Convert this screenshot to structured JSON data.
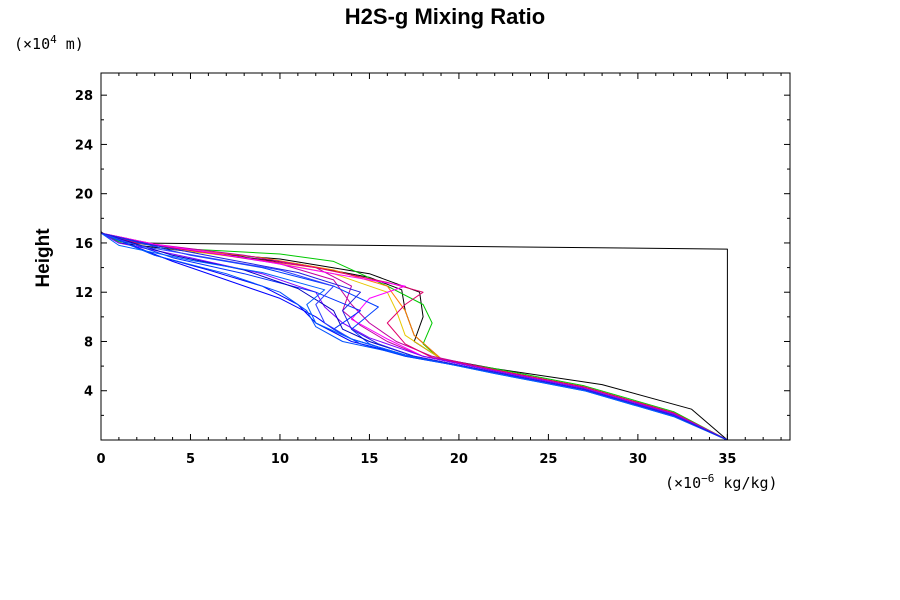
{
  "chart_data": {
    "type": "line",
    "title": "H2S-g Mixing Ratio",
    "xlabel": "",
    "ylabel": "Height",
    "x_unit_prefix": "(×10",
    "x_unit_exp": "−6",
    "x_unit_suffix": " kg/kg)",
    "y_unit_prefix": "(×10",
    "y_unit_exp": "4",
    "y_unit_suffix": " m)",
    "xlim": [
      0,
      38.5
    ],
    "ylim": [
      0,
      29.8
    ],
    "x_ticks": [
      0,
      5,
      10,
      15,
      20,
      25,
      30,
      35
    ],
    "y_ticks": [
      4,
      8,
      12,
      16,
      20,
      24,
      28
    ],
    "x_tick_labels": [
      "0",
      "5",
      "10",
      "15",
      "20",
      "25",
      "30",
      "35"
    ],
    "y_tick_labels": [
      "4",
      "8",
      "12",
      "16",
      "20",
      "24",
      "28"
    ],
    "grid": false,
    "legend": "none",
    "series": [
      {
        "color": "#000000",
        "x": [
          0,
          0.5,
          2,
          35,
          35,
          33,
          28,
          22,
          19,
          17.5,
          18,
          17.8,
          15,
          10,
          5,
          1,
          0
        ],
        "y": [
          16.9,
          16.4,
          16.0,
          15.5,
          0,
          2.5,
          4.5,
          5.8,
          6.6,
          8.0,
          10.0,
          12.0,
          13.5,
          14.7,
          15.3,
          16.0,
          16.9
        ]
      },
      {
        "color": "#000000",
        "x": [
          35,
          32,
          27,
          22,
          19,
          17.5,
          17,
          16.8,
          15,
          11,
          6,
          2,
          0
        ],
        "y": [
          0,
          2.2,
          4.3,
          5.7,
          6.6,
          8.5,
          10.5,
          12.2,
          13.2,
          14.3,
          15.2,
          16.0,
          16.8
        ]
      },
      {
        "color": "#00c800",
        "x": [
          35,
          32,
          27,
          22,
          19,
          18,
          18.5,
          18,
          16,
          14.5,
          13,
          10,
          5,
          1,
          0
        ],
        "y": [
          0,
          2.3,
          4.4,
          5.8,
          6.5,
          7.8,
          9.5,
          11.0,
          12.5,
          13.5,
          14.5,
          15.1,
          15.5,
          16.1,
          16.8
        ]
      },
      {
        "color": "#e8c800",
        "x": [
          35,
          32,
          27,
          22,
          19,
          17,
          16.5,
          16,
          13,
          9,
          4,
          0
        ],
        "y": [
          0,
          2.2,
          4.3,
          5.7,
          6.6,
          8.5,
          10.5,
          12.0,
          13.5,
          14.6,
          15.5,
          16.8
        ]
      },
      {
        "color": "#ff8000",
        "x": [
          35,
          32,
          27,
          22,
          19,
          17.5,
          17,
          16,
          13,
          9,
          4,
          0
        ],
        "y": [
          0,
          2.2,
          4.3,
          5.7,
          6.6,
          8.5,
          10.5,
          12.5,
          13.8,
          14.8,
          15.6,
          16.8
        ]
      },
      {
        "color": "#c000a0",
        "x": [
          35,
          32,
          27,
          22,
          18.5,
          16.5,
          15,
          14,
          13,
          10,
          6,
          2,
          0
        ],
        "y": [
          0,
          2.2,
          4.3,
          5.7,
          6.8,
          8.0,
          9.5,
          11.0,
          13.0,
          14.3,
          15.2,
          16.0,
          16.8
        ]
      },
      {
        "color": "#c000a0",
        "x": [
          35,
          32,
          27,
          22,
          18,
          16,
          14.5,
          13.5,
          14,
          12,
          8,
          3,
          0
        ],
        "y": [
          0,
          2.1,
          4.2,
          5.6,
          6.8,
          8.0,
          9.3,
          10.5,
          12.5,
          14.0,
          15.0,
          15.9,
          16.8
        ]
      },
      {
        "color": "#e0006a",
        "x": [
          35,
          32,
          27,
          22,
          18.5,
          17,
          16,
          17,
          18,
          16,
          12,
          7,
          2,
          0
        ],
        "y": [
          0,
          2.2,
          4.3,
          5.7,
          6.7,
          7.8,
          9.5,
          11.0,
          12.0,
          12.8,
          14.0,
          15.0,
          16.0,
          16.8
        ]
      },
      {
        "color": "#ff00ff",
        "x": [
          35,
          32,
          27,
          22,
          18,
          16,
          14,
          15,
          17,
          13,
          8,
          3,
          0
        ],
        "y": [
          0,
          2.1,
          4.2,
          5.6,
          6.8,
          8.2,
          9.8,
          11.5,
          12.5,
          13.5,
          14.8,
          15.9,
          16.8
        ]
      },
      {
        "color": "#8000ff",
        "x": [
          35,
          32,
          27,
          22,
          18,
          15,
          13.5,
          12.5,
          12,
          9,
          5,
          1,
          0
        ],
        "y": [
          0,
          2.1,
          4.2,
          5.6,
          6.8,
          8.3,
          9.5,
          10.8,
          12.0,
          13.5,
          14.8,
          16.0,
          16.8
        ]
      },
      {
        "color": "#0000ff",
        "x": [
          35,
          32,
          27,
          22,
          17,
          14,
          12,
          11,
          9,
          6,
          3,
          0
        ],
        "y": [
          0,
          2.0,
          4.1,
          5.5,
          6.9,
          8.0,
          9.5,
          11.0,
          12.5,
          13.8,
          15.0,
          16.8
        ]
      },
      {
        "color": "#0000ff",
        "x": [
          35,
          32,
          27,
          22,
          17,
          14,
          13,
          12,
          10,
          7,
          4,
          0
        ],
        "y": [
          0,
          2.0,
          4.1,
          5.5,
          6.9,
          8.2,
          9.0,
          10.0,
          11.5,
          13.0,
          14.5,
          16.8
        ]
      },
      {
        "color": "#0030ff",
        "x": [
          35,
          32,
          27,
          22,
          17,
          14.5,
          13,
          14.5,
          12,
          8,
          4,
          0
        ],
        "y": [
          0,
          2.0,
          4.1,
          5.5,
          6.8,
          7.8,
          9.0,
          10.5,
          12.0,
          13.5,
          14.8,
          16.8
        ]
      },
      {
        "color": "#0040ff",
        "x": [
          35,
          32,
          27,
          22,
          17,
          15,
          14,
          15.5,
          13,
          9,
          5,
          0
        ],
        "y": [
          0,
          2.0,
          4.1,
          5.5,
          6.8,
          7.8,
          9.0,
          10.8,
          12.5,
          14.0,
          15.0,
          16.8
        ]
      },
      {
        "color": "#0050ff",
        "x": [
          35,
          32,
          27,
          22,
          17,
          13.5,
          12,
          11.5,
          10,
          7,
          3,
          0
        ],
        "y": [
          0,
          1.9,
          4.0,
          5.4,
          6.9,
          8.0,
          9.2,
          10.5,
          12.0,
          13.5,
          15.0,
          16.8
        ]
      },
      {
        "color": "#0000c0",
        "x": [
          35,
          32,
          27,
          22,
          17.5,
          15,
          13.5,
          13,
          11,
          8,
          4,
          0
        ],
        "y": [
          0,
          2.0,
          4.1,
          5.5,
          6.8,
          8.0,
          9.0,
          10.5,
          12.3,
          13.8,
          15.0,
          16.8
        ]
      },
      {
        "color": "#3040ff",
        "x": [
          35,
          32,
          27,
          22,
          17,
          14,
          12.5,
          12,
          13,
          10,
          6,
          2,
          0
        ],
        "y": [
          0,
          2.0,
          4.1,
          5.5,
          6.9,
          8.2,
          9.5,
          11.0,
          12.5,
          13.8,
          14.8,
          15.8,
          16.8
        ]
      },
      {
        "color": "#0060ff",
        "x": [
          35,
          32,
          27,
          22,
          17,
          14,
          12,
          11.5,
          12.5,
          9,
          5,
          1,
          0
        ],
        "y": [
          0,
          1.9,
          4.0,
          5.4,
          6.9,
          8.2,
          9.5,
          11.0,
          12.2,
          13.6,
          14.6,
          15.8,
          16.8
        ]
      },
      {
        "color": "#2020e0",
        "x": [
          35,
          32,
          27,
          22,
          17.5,
          15.5,
          14,
          13.5,
          14.5,
          11,
          7,
          3,
          0
        ],
        "y": [
          0,
          2.0,
          4.1,
          5.5,
          6.8,
          7.8,
          9.0,
          10.5,
          12.0,
          13.6,
          14.7,
          15.8,
          16.8
        ]
      },
      {
        "color": "#00a0ff",
        "x": [
          0,
          0
        ],
        "y": [
          0,
          29.8
        ]
      }
    ]
  }
}
